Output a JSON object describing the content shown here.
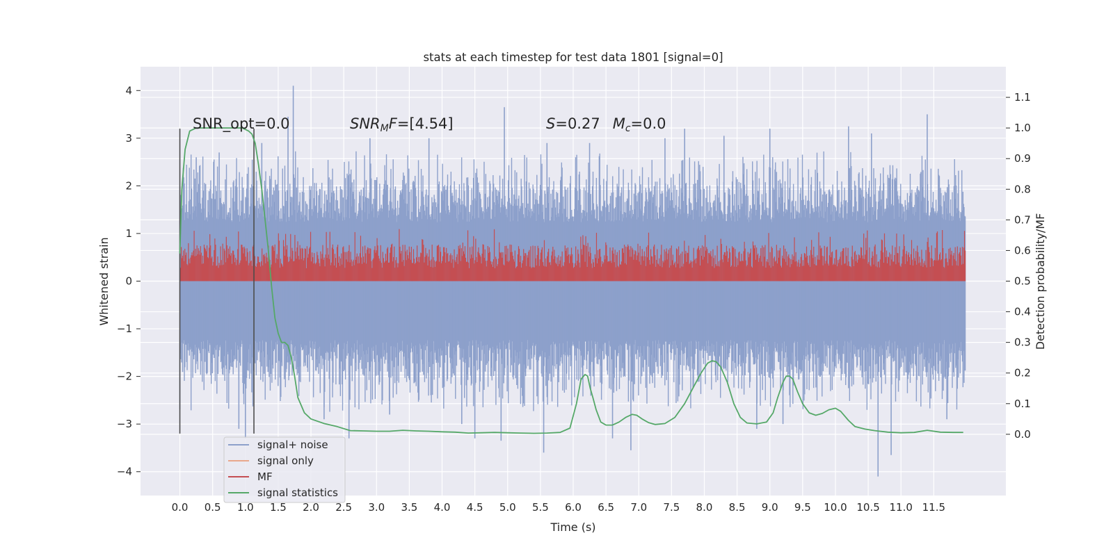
{
  "chart_data": {
    "type": "line",
    "title": "stats at each timestep for test data 1801 [signal=0]",
    "xlabel": "Time (s)",
    "ylabel_left": "Whitened strain",
    "ylabel_right": "Detection probability/MF",
    "xlim": [
      -0.6,
      12.6
    ],
    "ylim_left": [
      -4.5,
      4.5
    ],
    "ylim_right": [
      -0.2,
      1.2
    ],
    "x_ticks": [
      "0.0",
      "0.5",
      "1.0",
      "1.5",
      "2.0",
      "2.5",
      "3.0",
      "3.5",
      "4.0",
      "4.5",
      "5.0",
      "5.5",
      "6.0",
      "6.5",
      "7.0",
      "7.5",
      "8.0",
      "8.5",
      "9.0",
      "9.5",
      "10.0",
      "10.5",
      "11.0",
      "11.5"
    ],
    "y_ticks_left": [
      "4",
      "3",
      "2",
      "1",
      "0",
      "−1",
      "−2",
      "−3",
      "−4"
    ],
    "y_ticks_right": [
      "1.1",
      "1.0",
      "0.9",
      "0.8",
      "0.7",
      "0.6",
      "0.5",
      "0.4",
      "0.3",
      "0.2",
      "0.1",
      "0.0"
    ],
    "grid": true,
    "legend_placement": "lower-left",
    "annotations": {
      "snr_opt": "SNR_opt=0.0",
      "snr_mf_italic": "SNR",
      "snr_mf_sub": "M",
      "snr_mf_italic2": "F",
      "snr_mf_value": "=[4.54]",
      "s_label": "S",
      "s_value": "=0.27",
      "mc_label": "M",
      "mc_sub": "c",
      "mc_value": "=0.0"
    },
    "window_markers_x": [
      0.0,
      1.13
    ],
    "series": [
      {
        "name": "signal+ noise",
        "axis": "left",
        "color": "#8da0cb",
        "style": "noise band",
        "x_range": [
          0.0,
          11.98
        ],
        "typical_range": [
          -1.3,
          1.3
        ],
        "peaks": [
          {
            "x": 0.25,
            "y": 2.6
          },
          {
            "x": 0.6,
            "y": 2.7
          },
          {
            "x": 0.9,
            "y": -3.1
          },
          {
            "x": 1.0,
            "y": -3.3
          },
          {
            "x": 1.25,
            "y": 2.9
          },
          {
            "x": 1.73,
            "y": 4.1
          },
          {
            "x": 1.65,
            "y": 3.45
          },
          {
            "x": 2.2,
            "y": -2.9
          },
          {
            "x": 2.58,
            "y": -3.3
          },
          {
            "x": 2.9,
            "y": 3.0
          },
          {
            "x": 3.2,
            "y": -2.8
          },
          {
            "x": 3.8,
            "y": 3.0
          },
          {
            "x": 4.3,
            "y": -3.0
          },
          {
            "x": 4.5,
            "y": -3.3
          },
          {
            "x": 4.9,
            "y": -3.35
          },
          {
            "x": 4.95,
            "y": 3.65
          },
          {
            "x": 5.55,
            "y": -3.6
          },
          {
            "x": 5.6,
            "y": 2.9
          },
          {
            "x": 6.25,
            "y": 2.9
          },
          {
            "x": 6.6,
            "y": -3.3
          },
          {
            "x": 6.88,
            "y": -3.55
          },
          {
            "x": 7.4,
            "y": 3.0
          },
          {
            "x": 7.7,
            "y": 3.2
          },
          {
            "x": 8.3,
            "y": 3.05
          },
          {
            "x": 8.8,
            "y": -3.1
          },
          {
            "x": 9.0,
            "y": 3.2
          },
          {
            "x": 9.2,
            "y": -3.0
          },
          {
            "x": 10.2,
            "y": 3.25
          },
          {
            "x": 10.55,
            "y": 3.1
          },
          {
            "x": 10.65,
            "y": -4.1
          },
          {
            "x": 10.85,
            "y": -3.65
          },
          {
            "x": 11.4,
            "y": 3.5
          },
          {
            "x": 11.7,
            "y": -2.9
          }
        ]
      },
      {
        "name": "signal only",
        "axis": "left",
        "color": "#e9a88c",
        "values": "flat at 0"
      },
      {
        "name": "MF",
        "axis": "right",
        "color": "#c44e52",
        "x_range": [
          0.0,
          11.98
        ],
        "typical_range": [
          0.5,
          0.62
        ],
        "max": 0.67
      },
      {
        "name": "signal statistics",
        "axis": "right",
        "color": "#55a868",
        "x": [
          0.0,
          0.03,
          0.08,
          0.15,
          0.25,
          0.4,
          0.6,
          0.8,
          0.95,
          1.05,
          1.1,
          1.15,
          1.2,
          1.25,
          1.3,
          1.35,
          1.4,
          1.45,
          1.5,
          1.55,
          1.6,
          1.65,
          1.7,
          1.75,
          1.8,
          1.9,
          2.0,
          2.2,
          2.4,
          2.6,
          2.8,
          3.0,
          3.2,
          3.4,
          3.6,
          3.8,
          4.0,
          4.2,
          4.4,
          4.6,
          4.8,
          5.0,
          5.2,
          5.4,
          5.6,
          5.8,
          5.95,
          6.05,
          6.12,
          6.18,
          6.22,
          6.26,
          6.3,
          6.35,
          6.42,
          6.5,
          6.6,
          6.7,
          6.8,
          6.9,
          6.97,
          7.05,
          7.15,
          7.25,
          7.4,
          7.55,
          7.7,
          7.85,
          7.95,
          8.05,
          8.12,
          8.18,
          8.25,
          8.35,
          8.45,
          8.55,
          8.65,
          8.8,
          8.95,
          9.05,
          9.12,
          9.2,
          9.25,
          9.3,
          9.35,
          9.42,
          9.5,
          9.6,
          9.7,
          9.8,
          9.9,
          10.0,
          10.08,
          10.2,
          10.3,
          10.45,
          10.6,
          10.8,
          11.0,
          11.2,
          11.4,
          11.6,
          11.8,
          11.95
        ],
        "values": [
          0.59,
          0.8,
          0.93,
          0.99,
          1.0,
          1.0,
          1.0,
          1.0,
          1.0,
          0.99,
          0.98,
          0.95,
          0.88,
          0.8,
          0.7,
          0.6,
          0.48,
          0.38,
          0.33,
          0.3,
          0.3,
          0.29,
          0.25,
          0.19,
          0.12,
          0.07,
          0.05,
          0.035,
          0.025,
          0.012,
          0.011,
          0.01,
          0.01,
          0.013,
          0.011,
          0.01,
          0.008,
          0.007,
          0.004,
          0.005,
          0.006,
          0.005,
          0.004,
          0.003,
          0.004,
          0.006,
          0.02,
          0.1,
          0.18,
          0.195,
          0.19,
          0.15,
          0.12,
          0.08,
          0.04,
          0.03,
          0.03,
          0.04,
          0.055,
          0.065,
          0.062,
          0.05,
          0.038,
          0.032,
          0.035,
          0.055,
          0.1,
          0.16,
          0.2,
          0.232,
          0.24,
          0.237,
          0.22,
          0.17,
          0.1,
          0.055,
          0.037,
          0.034,
          0.04,
          0.07,
          0.12,
          0.17,
          0.19,
          0.19,
          0.18,
          0.14,
          0.1,
          0.07,
          0.062,
          0.068,
          0.08,
          0.085,
          0.075,
          0.045,
          0.025,
          0.017,
          0.012,
          0.007,
          0.005,
          0.006,
          0.013,
          0.007,
          0.006,
          0.006
        ]
      }
    ]
  }
}
